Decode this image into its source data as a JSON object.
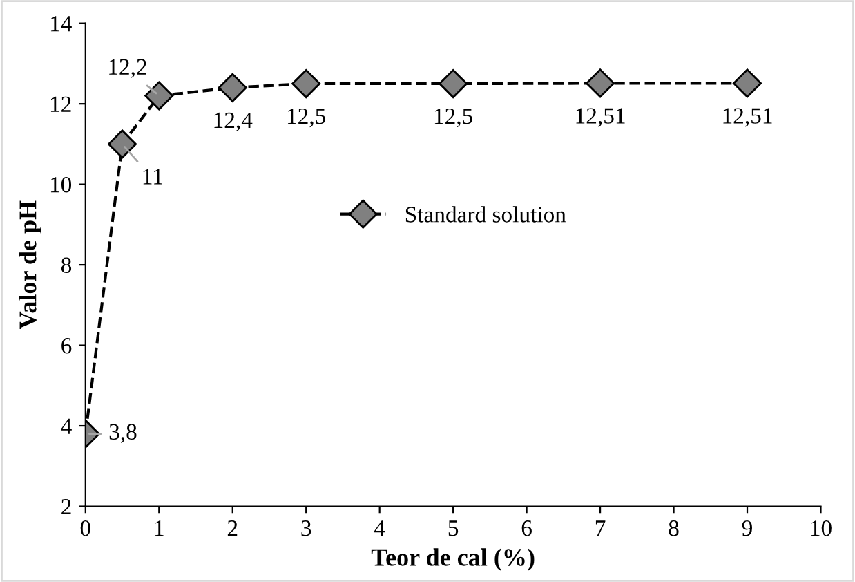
{
  "chart_data": {
    "type": "line",
    "xlabel": "Teor de cal (%)",
    "ylabel": "Valor de pH",
    "x": [
      0,
      0.5,
      1,
      2,
      3,
      5,
      7,
      9
    ],
    "series": [
      {
        "name": "Standard solution",
        "color": "#000000",
        "values": [
          3.8,
          11,
          12.2,
          12.4,
          12.5,
          12.5,
          12.51,
          12.51
        ],
        "value_labels": [
          "3,8",
          "11",
          "12,2",
          "12,4",
          "12,5",
          "12,5",
          "12,51",
          "12,51"
        ]
      }
    ],
    "xlim": [
      0,
      10
    ],
    "xticks": [
      0,
      1,
      2,
      3,
      4,
      5,
      6,
      7,
      8,
      9,
      10
    ],
    "ylim": [
      2,
      14
    ],
    "yticks": [
      2,
      4,
      6,
      8,
      10,
      12,
      14
    ],
    "marker": "diamond",
    "line_style": "dashed",
    "legend": "center",
    "grid": false
  }
}
